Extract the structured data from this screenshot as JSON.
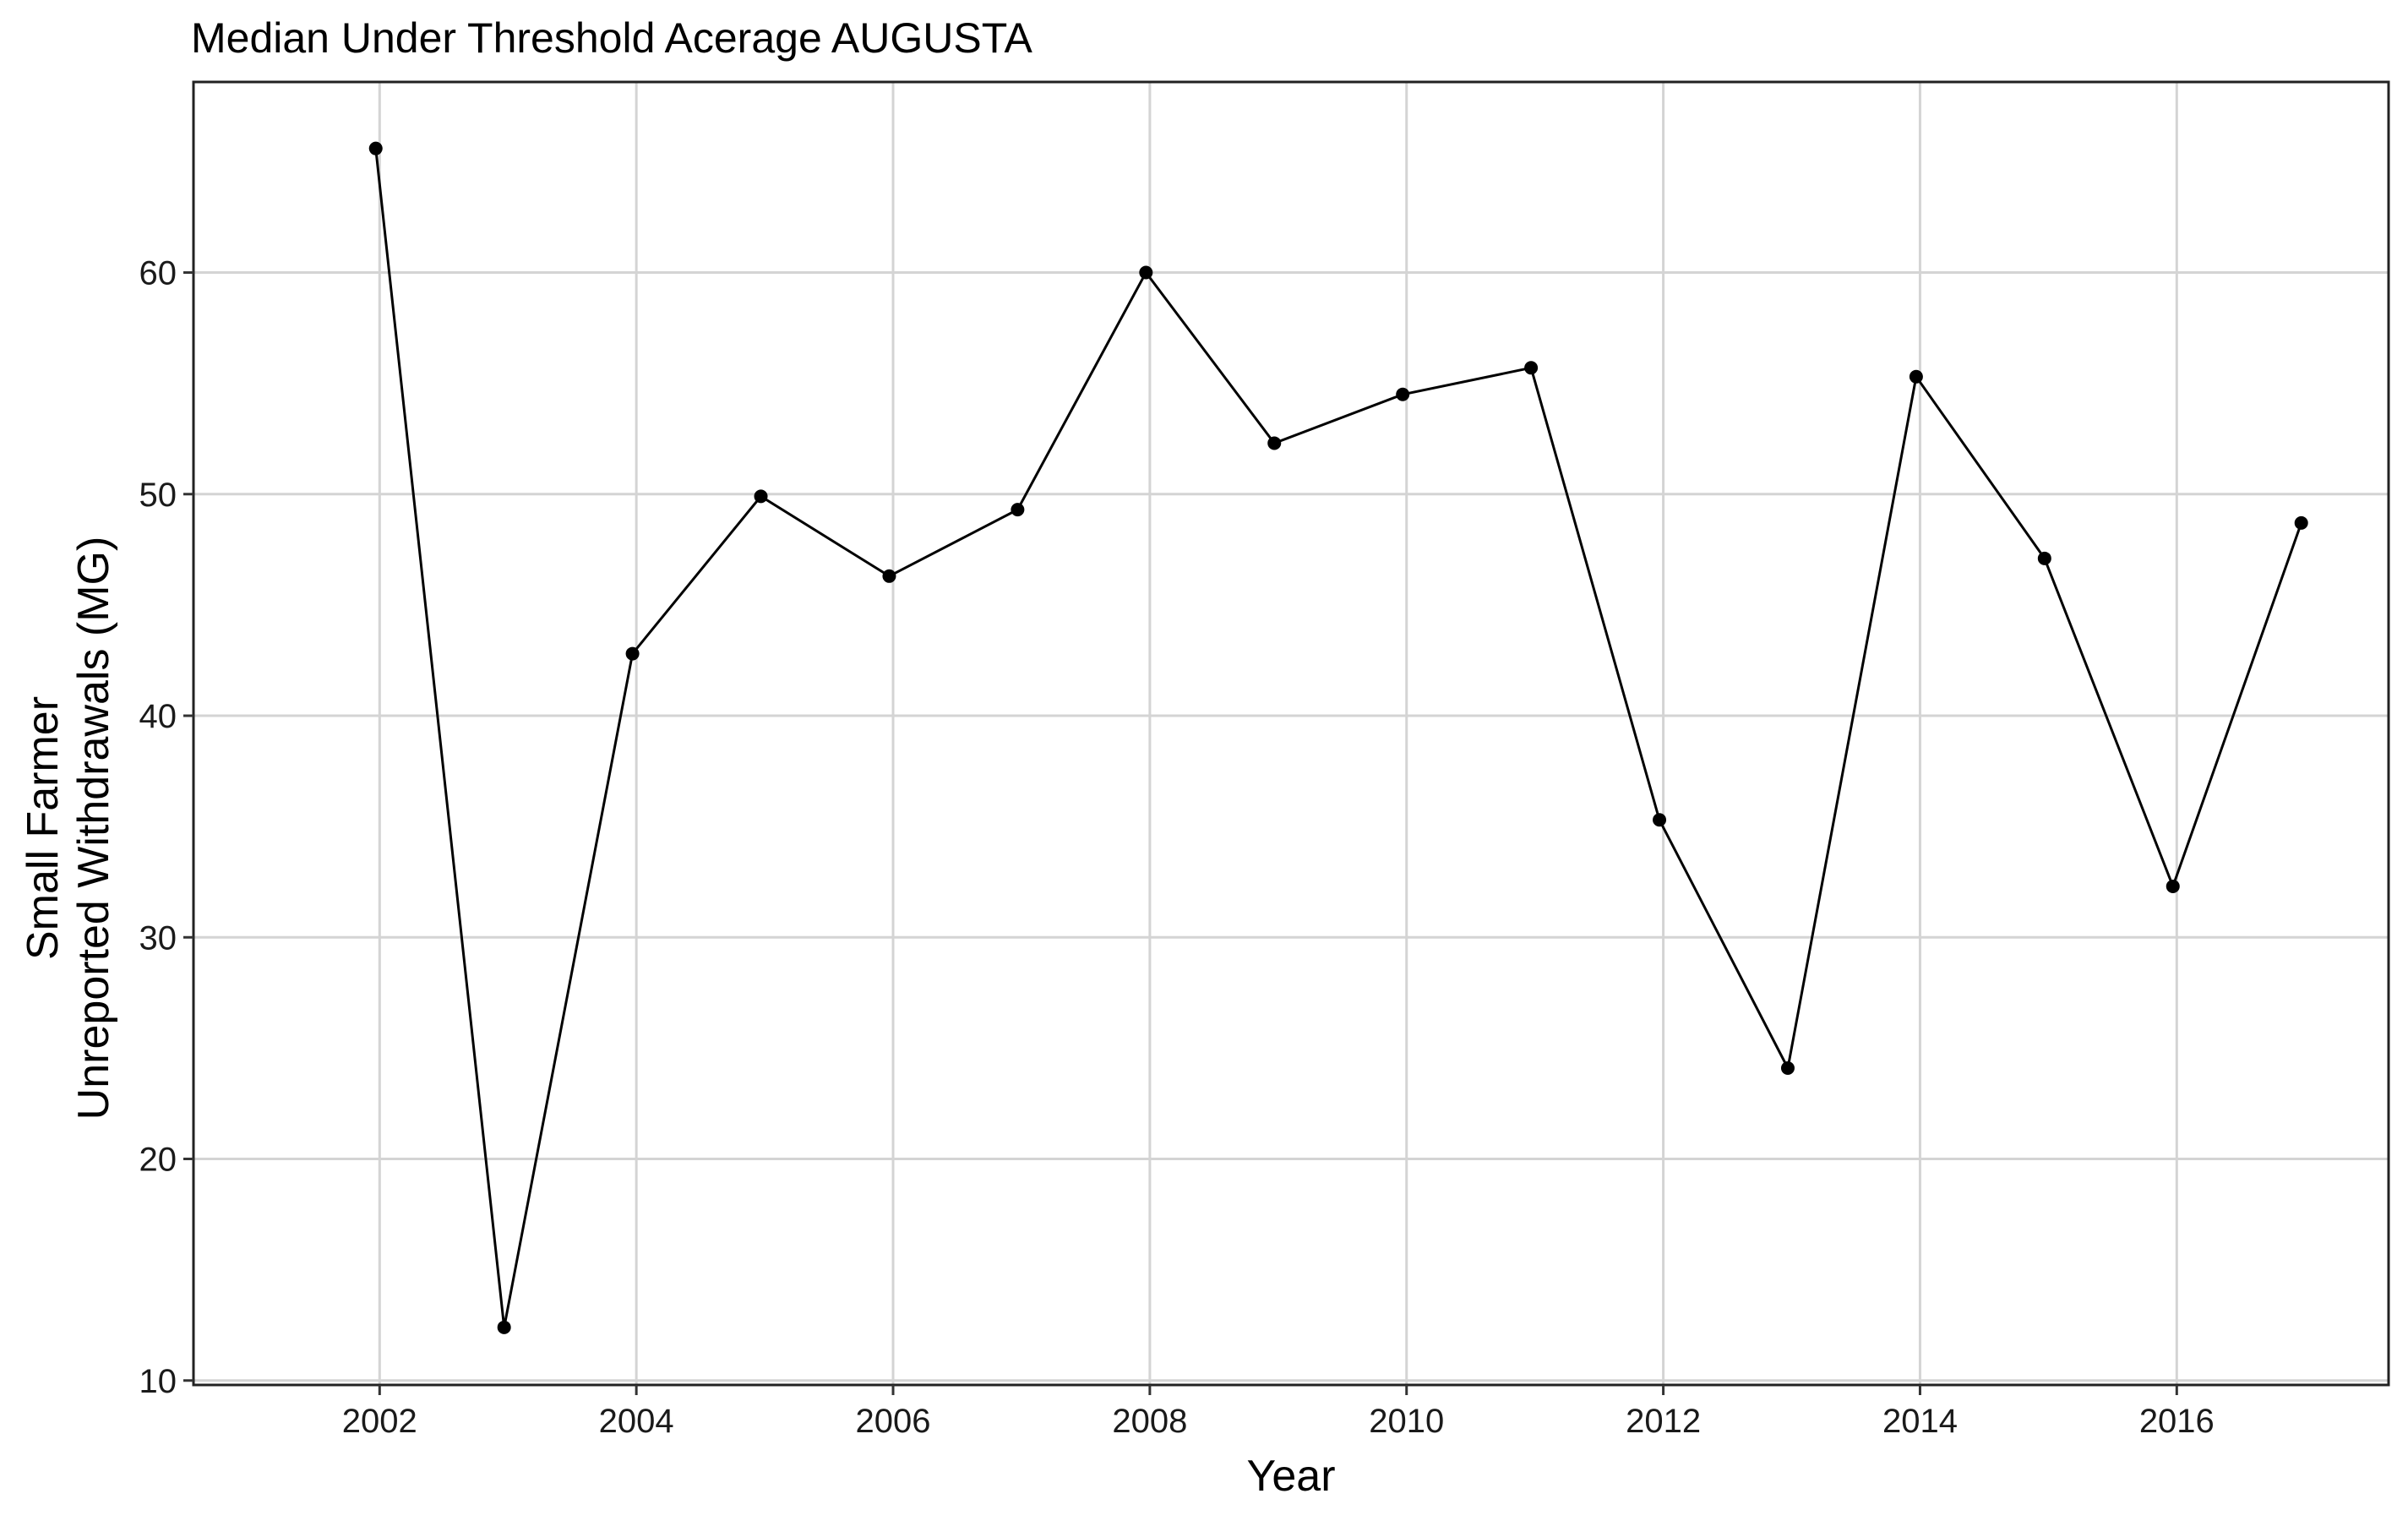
{
  "chart_data": {
    "type": "line",
    "title": "Median Under Threshold Acerage AUGUSTA",
    "xlabel": "Year",
    "ylabel_line1": "Small Farmer",
    "ylabel_line2": "Unreported Withdrawals (MG)",
    "x": [
      2001.97,
      2002.97,
      2003.97,
      2004.97,
      2005.97,
      2006.97,
      2007.97,
      2008.97,
      2009.97,
      2010.97,
      2011.97,
      2012.97,
      2013.97,
      2014.97,
      2015.97,
      2016.97
    ],
    "y": [
      65.6,
      12.4,
      42.8,
      49.9,
      46.3,
      49.3,
      60.0,
      52.3,
      54.5,
      55.7,
      35.3,
      24.1,
      55.3,
      47.1,
      32.3,
      48.7
    ],
    "xlim": [
      2000.55,
      2017.65
    ],
    "ylim": [
      9.8,
      68.6
    ],
    "x_ticks": [
      2002,
      2004,
      2006,
      2008,
      2010,
      2012,
      2014,
      2016
    ],
    "y_ticks": [
      10,
      20,
      30,
      40,
      50,
      60
    ],
    "grid": true,
    "series_color": "#000000",
    "grid_color": "#d4d4d4"
  }
}
